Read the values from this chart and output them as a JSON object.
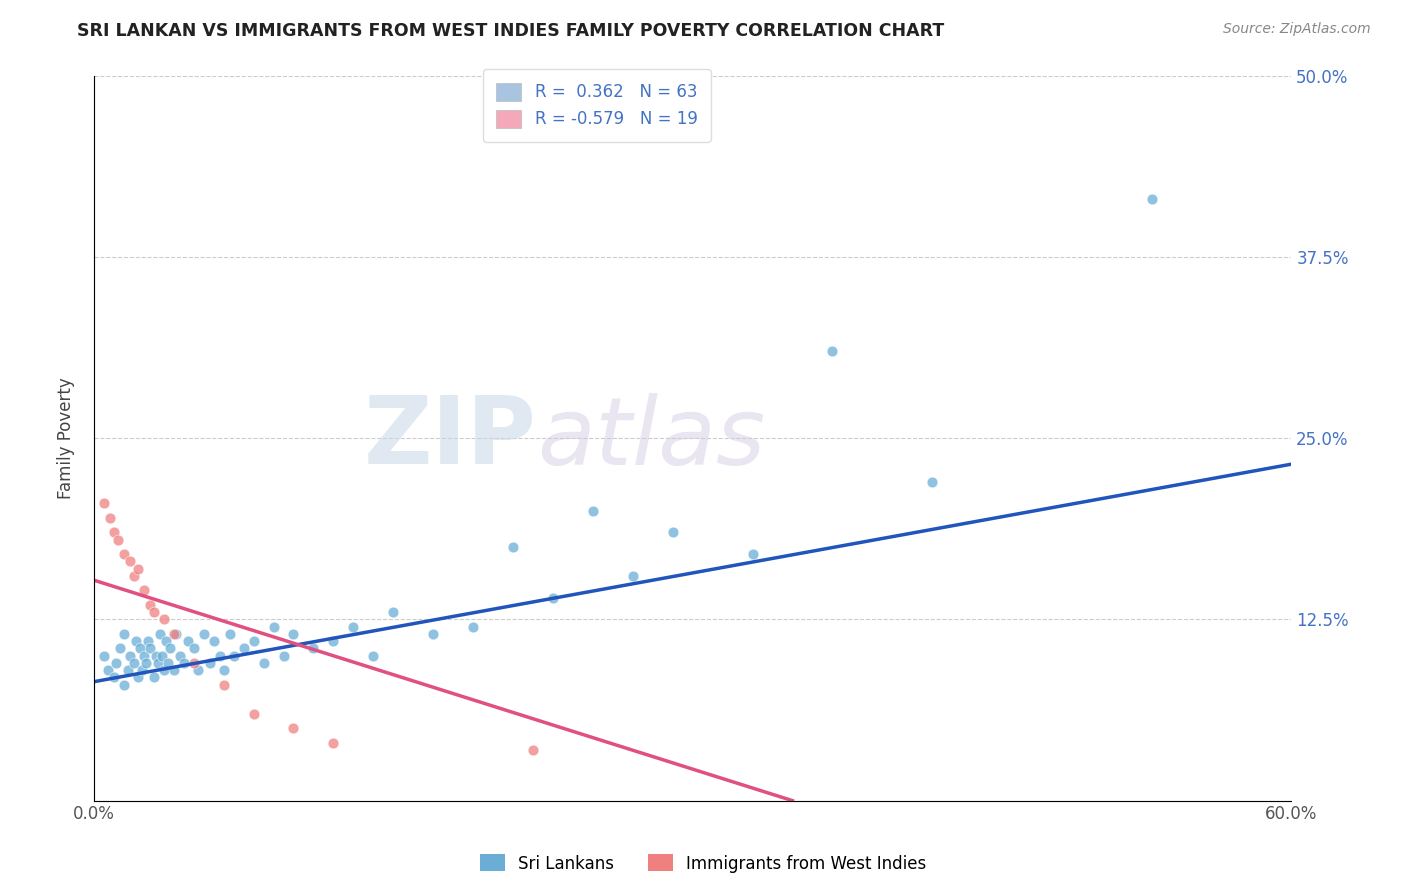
{
  "title": "SRI LANKAN VS IMMIGRANTS FROM WEST INDIES FAMILY POVERTY CORRELATION CHART",
  "source": "Source: ZipAtlas.com",
  "ylabel": "Family Poverty",
  "x_min": 0.0,
  "x_max": 0.6,
  "y_min": 0.0,
  "y_max": 0.5,
  "sri_lankan_color": "#6aaed6",
  "west_indies_color": "#f08080",
  "sri_lankan_line_color": "#2255bb",
  "west_indies_line_color": "#e05080",
  "legend_label_1": "R =  0.362   N = 63",
  "legend_label_2": "R = -0.579   N = 19",
  "legend_color_1": "#a8c4e0",
  "legend_color_2": "#f4a8b8",
  "watermark_zip": "ZIP",
  "watermark_atlas": "atlas",
  "sri_lankans_x": [
    0.005,
    0.007,
    0.01,
    0.011,
    0.013,
    0.015,
    0.015,
    0.017,
    0.018,
    0.02,
    0.021,
    0.022,
    0.023,
    0.024,
    0.025,
    0.026,
    0.027,
    0.028,
    0.03,
    0.031,
    0.032,
    0.033,
    0.034,
    0.035,
    0.036,
    0.037,
    0.038,
    0.04,
    0.041,
    0.043,
    0.045,
    0.047,
    0.05,
    0.052,
    0.055,
    0.058,
    0.06,
    0.063,
    0.065,
    0.068,
    0.07,
    0.075,
    0.08,
    0.085,
    0.09,
    0.095,
    0.1,
    0.11,
    0.12,
    0.13,
    0.14,
    0.15,
    0.17,
    0.19,
    0.21,
    0.23,
    0.25,
    0.27,
    0.29,
    0.33,
    0.37,
    0.42,
    0.53
  ],
  "sri_lankans_y": [
    0.1,
    0.09,
    0.085,
    0.095,
    0.105,
    0.08,
    0.115,
    0.09,
    0.1,
    0.095,
    0.11,
    0.085,
    0.105,
    0.09,
    0.1,
    0.095,
    0.11,
    0.105,
    0.085,
    0.1,
    0.095,
    0.115,
    0.1,
    0.09,
    0.11,
    0.095,
    0.105,
    0.09,
    0.115,
    0.1,
    0.095,
    0.11,
    0.105,
    0.09,
    0.115,
    0.095,
    0.11,
    0.1,
    0.09,
    0.115,
    0.1,
    0.105,
    0.11,
    0.095,
    0.12,
    0.1,
    0.115,
    0.105,
    0.11,
    0.12,
    0.1,
    0.13,
    0.115,
    0.12,
    0.175,
    0.14,
    0.2,
    0.155,
    0.185,
    0.17,
    0.31,
    0.22,
    0.415
  ],
  "west_indies_x": [
    0.005,
    0.008,
    0.01,
    0.012,
    0.015,
    0.018,
    0.02,
    0.022,
    0.025,
    0.028,
    0.03,
    0.035,
    0.04,
    0.05,
    0.065,
    0.08,
    0.1,
    0.12,
    0.22
  ],
  "west_indies_y": [
    0.205,
    0.195,
    0.185,
    0.18,
    0.17,
    0.165,
    0.155,
    0.16,
    0.145,
    0.135,
    0.13,
    0.125,
    0.115,
    0.095,
    0.08,
    0.06,
    0.05,
    0.04,
    0.035
  ],
  "sri_line_x0": 0.0,
  "sri_line_x1": 0.6,
  "sri_line_y0": 0.082,
  "sri_line_y1": 0.232,
  "wi_line_x0": 0.0,
  "wi_line_x1": 0.35,
  "wi_line_y0": 0.152,
  "wi_line_y1": 0.0
}
